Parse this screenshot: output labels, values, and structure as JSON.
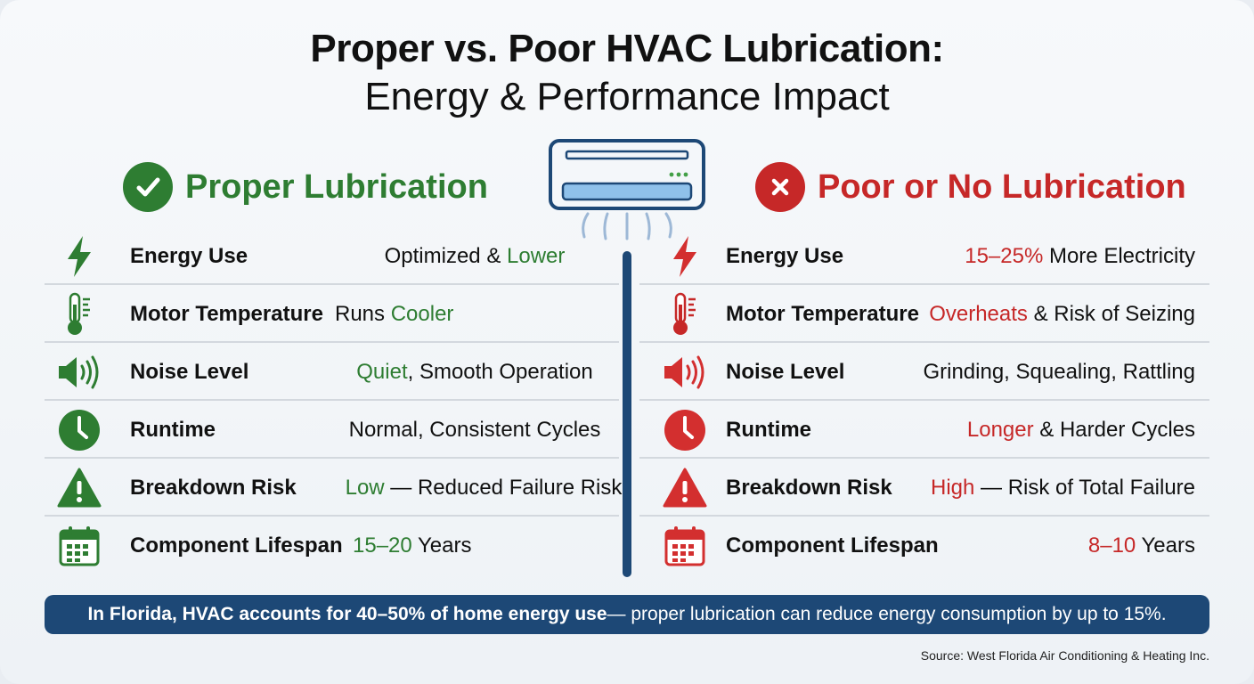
{
  "title": {
    "line1": "Proper vs. Poor HVAC Lubrication:",
    "line2": "Energy & Performance Impact"
  },
  "columns": {
    "proper": {
      "heading": "Proper Lubrication",
      "badge_icon": "check-icon",
      "accent": "#2e7d32"
    },
    "poor": {
      "heading": "Poor or No Lubrication",
      "badge_icon": "x-icon",
      "accent": "#c62828"
    }
  },
  "center_icon": "air-conditioner-icon",
  "rows": [
    {
      "icon": "lightning-icon",
      "label": "Energy Use",
      "proper": {
        "pre": "Optimized & ",
        "hl": "Lower",
        "post": ""
      },
      "poor": {
        "pre": "",
        "hl": "15–25%",
        "post": " More Electricity"
      }
    },
    {
      "icon": "thermometer-icon",
      "label": "Motor Temperature",
      "proper": {
        "pre": "Runs ",
        "hl": "Cooler",
        "post": ""
      },
      "poor": {
        "pre": "",
        "hl": "Overheats",
        "post": " & Risk of Seizing"
      }
    },
    {
      "icon": "speaker-icon",
      "label": "Noise Level",
      "proper": {
        "pre": "",
        "hl": "Quiet",
        "post": ", Smooth Operation"
      },
      "poor": {
        "pre": "Grinding, Squealing, Rattling",
        "hl": "",
        "post": ""
      }
    },
    {
      "icon": "clock-icon",
      "label": "Runtime",
      "proper": {
        "pre": "Normal, Consistent Cycles",
        "hl": "",
        "post": ""
      },
      "poor": {
        "pre": "",
        "hl": "Longer",
        "post": " & Harder Cycles"
      }
    },
    {
      "icon": "warning-icon",
      "label": "Breakdown Risk",
      "proper": {
        "pre": "",
        "hl": "Low",
        "post": " — Reduced Failure Risk"
      },
      "poor": {
        "pre": "",
        "hl": "High",
        "post": " — Risk of Total Failure"
      }
    },
    {
      "icon": "calendar-icon",
      "label": "Component Lifespan",
      "proper": {
        "pre": "",
        "hl": "15–20",
        "post": " Years"
      },
      "poor": {
        "pre": "",
        "hl": "8–10",
        "post": " Years"
      }
    }
  ],
  "banner": {
    "strong": "In Florida, HVAC accounts for 40–50% of home energy use",
    "rest": " — proper lubrication can reduce energy consumption by up to 15%."
  },
  "source": "Source: West Florida Air Conditioning & Heating Inc.",
  "colors": {
    "good": "#2e7d32",
    "bad": "#c62828",
    "navy": "#1d4876"
  }
}
